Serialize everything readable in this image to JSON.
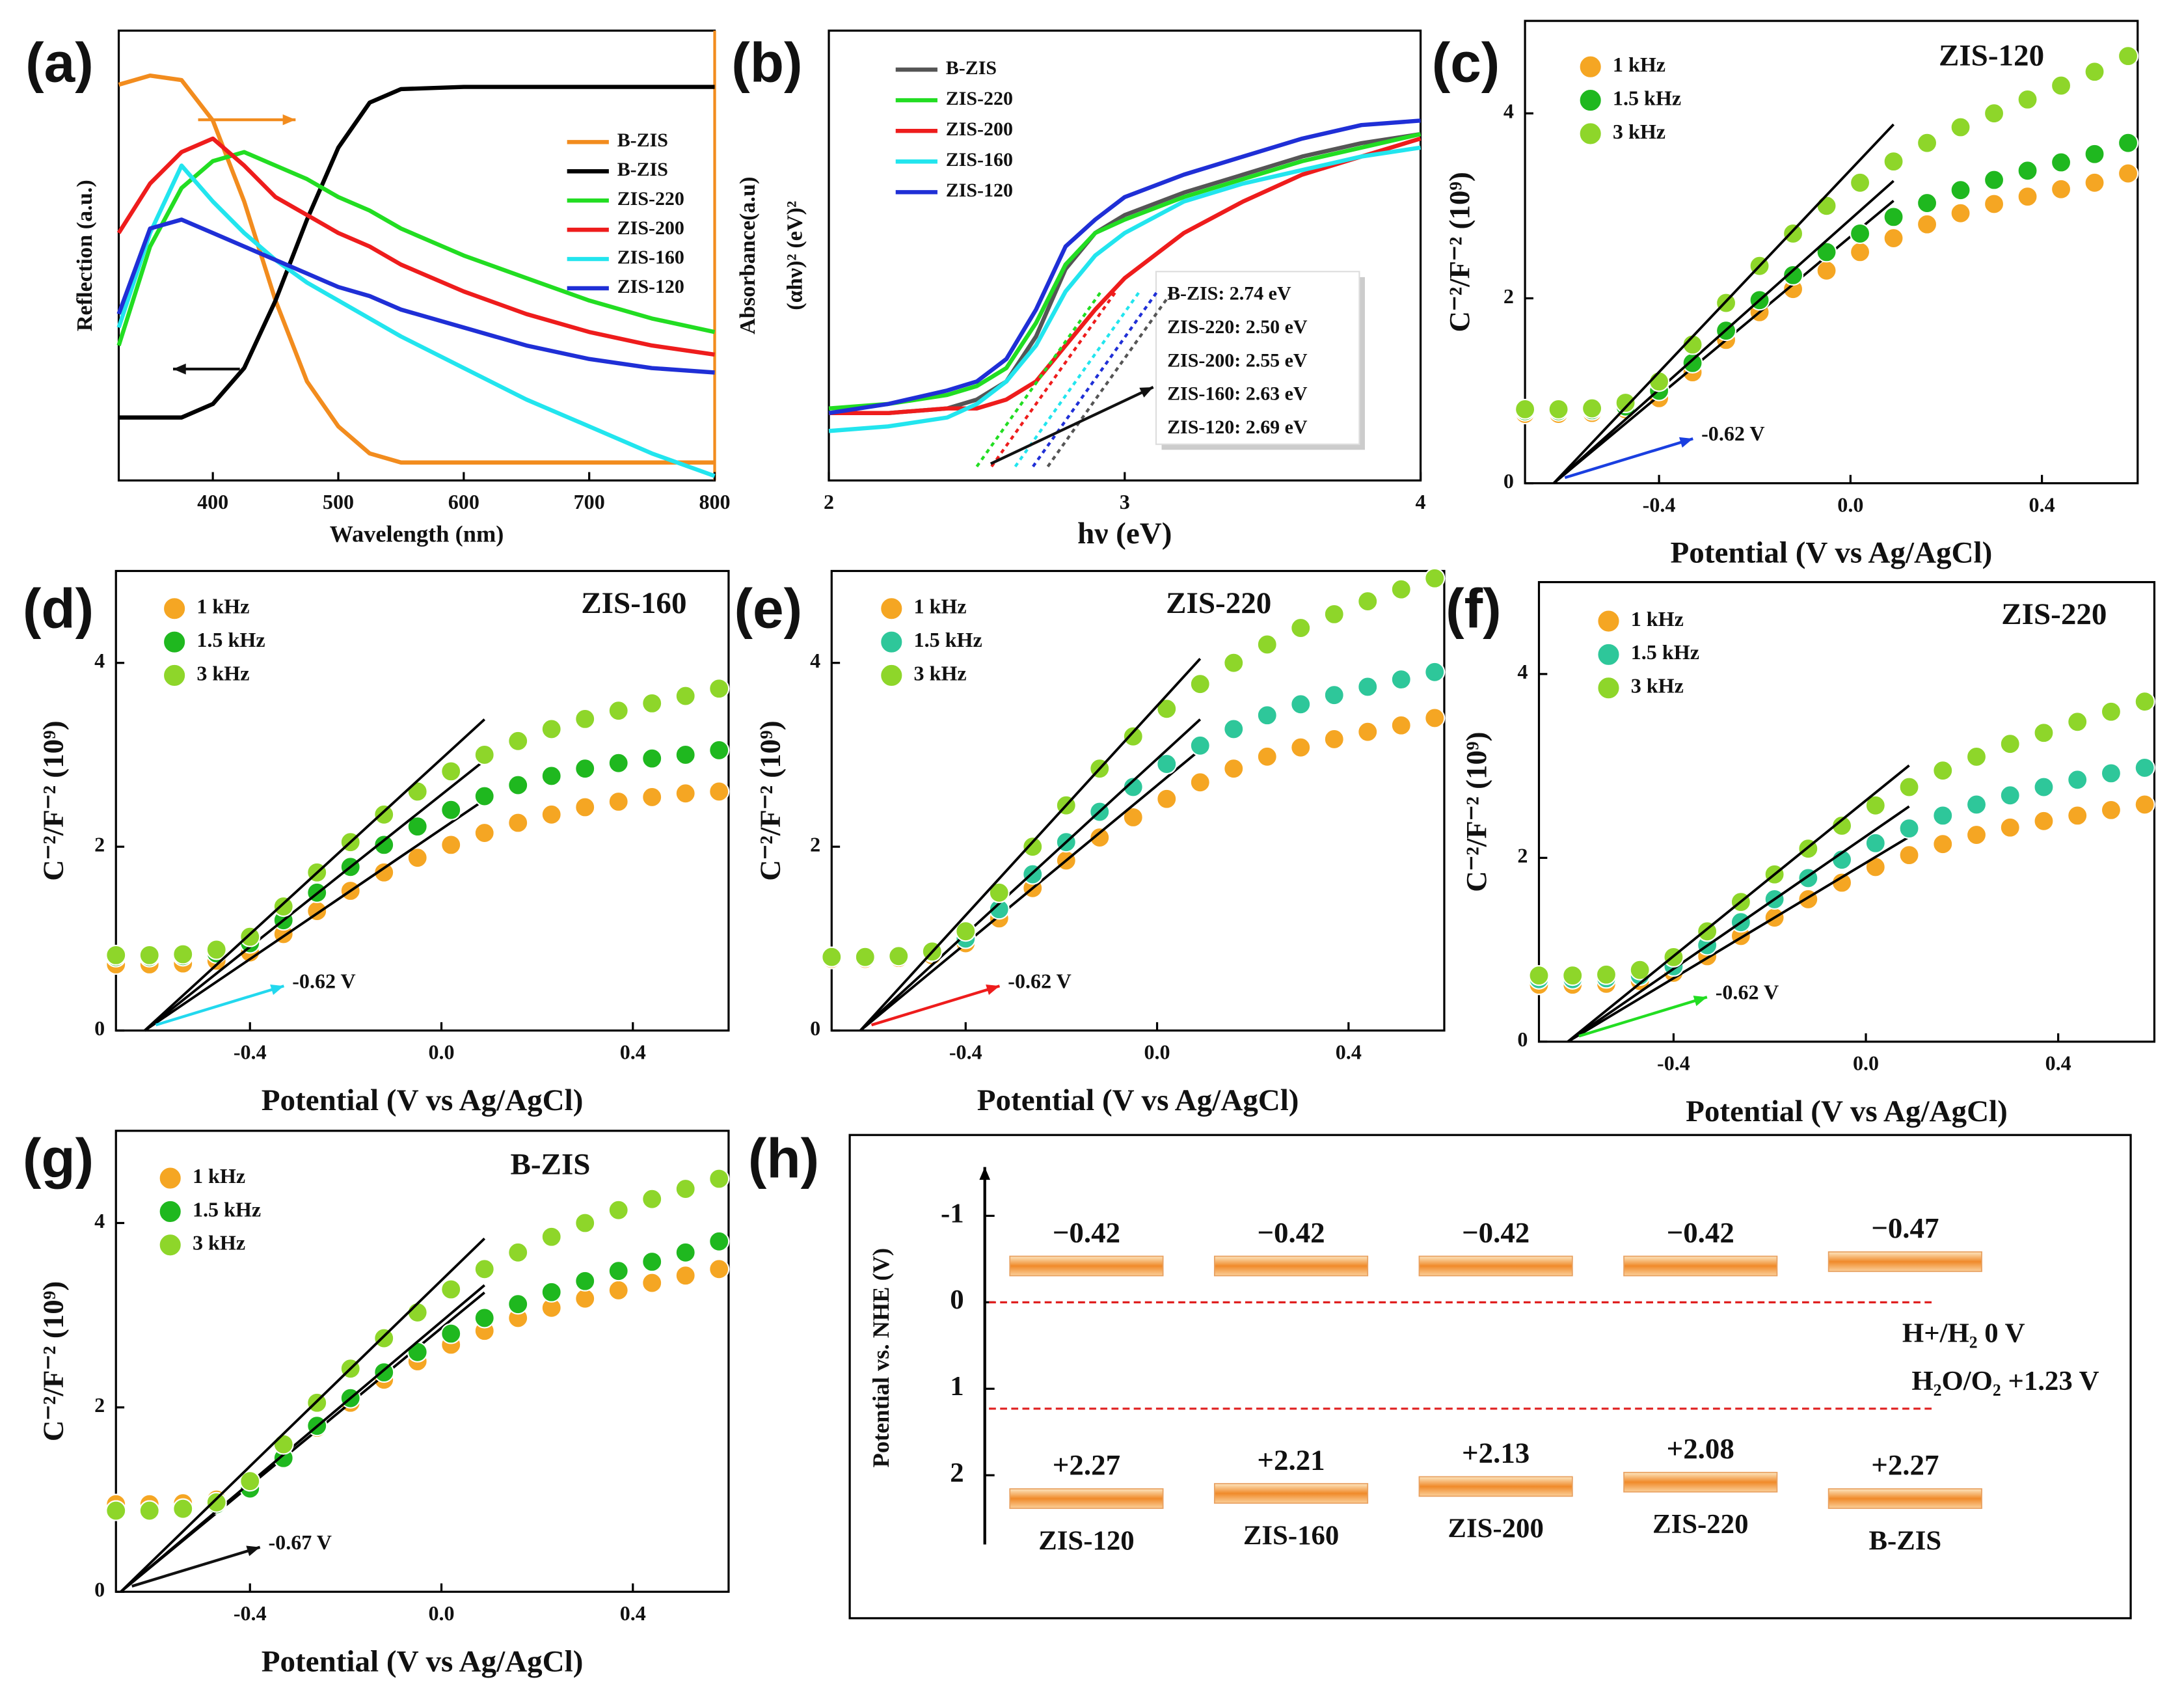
{
  "chart_data": [
    {
      "type": "line",
      "panel_label": "(a)",
      "x_label": "Wavelength (nm)",
      "y_label": "Reflection (a.u.)",
      "y2_label": "Absorbance(a.u)",
      "y2_color": "#f28c1e",
      "x": [
        325,
        350,
        375,
        400,
        425,
        450,
        475,
        500,
        525,
        550,
        600,
        650,
        700,
        750,
        800
      ],
      "xlim": [
        325,
        800
      ],
      "xticks": [
        400,
        500,
        600,
        700,
        800
      ],
      "ylim": [
        0,
        1
      ],
      "y2lim": [
        0,
        1
      ],
      "series": [
        {
          "name": "B-ZIS",
          "color": "#f28c1e",
          "axis": "y2",
          "values": [
            0.88,
            0.9,
            0.89,
            0.8,
            0.62,
            0.4,
            0.22,
            0.12,
            0.06,
            0.04,
            0.04,
            0.04,
            0.04,
            0.04,
            0.04
          ]
        },
        {
          "name": "B-ZIS",
          "color": "#000000",
          "values": [
            0.14,
            0.14,
            0.14,
            0.17,
            0.25,
            0.4,
            0.58,
            0.74,
            0.84,
            0.87,
            0.875,
            0.875,
            0.875,
            0.875,
            0.875
          ]
        },
        {
          "name": "ZIS-220",
          "color": "#22dd22",
          "values": [
            0.3,
            0.52,
            0.65,
            0.71,
            0.73,
            0.7,
            0.67,
            0.63,
            0.6,
            0.56,
            0.5,
            0.45,
            0.4,
            0.36,
            0.33
          ]
        },
        {
          "name": "ZIS-200",
          "color": "#ee1c1c",
          "values": [
            0.55,
            0.66,
            0.73,
            0.76,
            0.7,
            0.63,
            0.59,
            0.55,
            0.52,
            0.48,
            0.42,
            0.37,
            0.33,
            0.3,
            0.28
          ]
        },
        {
          "name": "ZIS-160",
          "color": "#22e5ee",
          "values": [
            0.34,
            0.55,
            0.7,
            0.62,
            0.55,
            0.49,
            0.44,
            0.4,
            0.36,
            0.32,
            0.25,
            0.18,
            0.12,
            0.06,
            0.01
          ]
        },
        {
          "name": "ZIS-120",
          "color": "#1f2fd6",
          "values": [
            0.37,
            0.56,
            0.58,
            0.55,
            0.52,
            0.49,
            0.46,
            0.43,
            0.41,
            0.38,
            0.34,
            0.3,
            0.27,
            0.25,
            0.24
          ]
        }
      ]
    },
    {
      "type": "line",
      "panel_label": "(b)",
      "x_label": "hν (eV)",
      "y_label": "(αhν)² (eV)²",
      "x": [
        2,
        2.2,
        2.4,
        2.5,
        2.6,
        2.7,
        2.8,
        2.9,
        3.0,
        3.2,
        3.4,
        3.6,
        3.8,
        4.0
      ],
      "xlim": [
        2,
        4
      ],
      "xticks": [
        2,
        3,
        4
      ],
      "ylim": [
        0,
        1
      ],
      "series": [
        {
          "name": "B-ZIS",
          "color": "#555555",
          "values": [
            0.15,
            0.15,
            0.16,
            0.18,
            0.22,
            0.32,
            0.47,
            0.55,
            0.59,
            0.64,
            0.68,
            0.72,
            0.75,
            0.77
          ]
        },
        {
          "name": "ZIS-220",
          "color": "#22dd22",
          "values": [
            0.16,
            0.17,
            0.19,
            0.21,
            0.25,
            0.35,
            0.48,
            0.55,
            0.58,
            0.63,
            0.67,
            0.71,
            0.74,
            0.77
          ]
        },
        {
          "name": "ZIS-200",
          "color": "#ee1c1c",
          "values": [
            0.15,
            0.15,
            0.16,
            0.16,
            0.18,
            0.22,
            0.3,
            0.38,
            0.45,
            0.55,
            0.62,
            0.68,
            0.72,
            0.76
          ]
        },
        {
          "name": "ZIS-160",
          "color": "#22e5ee",
          "values": [
            0.11,
            0.12,
            0.14,
            0.17,
            0.22,
            0.3,
            0.42,
            0.5,
            0.55,
            0.62,
            0.66,
            0.69,
            0.72,
            0.74
          ]
        },
        {
          "name": "ZIS-120",
          "color": "#1f2fd6",
          "values": [
            0.15,
            0.17,
            0.2,
            0.22,
            0.27,
            0.38,
            0.52,
            0.58,
            0.63,
            0.68,
            0.72,
            0.76,
            0.79,
            0.8
          ]
        }
      ],
      "band_gaps": [
        {
          "value": 2.74,
          "label": ": 2.74 eV"
        },
        {
          "value": 2.5,
          "label": ": 2.50 eV"
        },
        {
          "value": 2.55,
          "label": ": 2.55 eV"
        },
        {
          "value": 2.63,
          "label": ": 2.63 eV"
        },
        {
          "value": 2.69,
          "label": ": 2.69 eV"
        }
      ]
    },
    {
      "type": "scatter",
      "panel_label": "(c)",
      "title": "ZIS-120",
      "title_color": "#1a1aff",
      "x_label": "Potential (V vs Ag/AgCl)",
      "y_label": "C⁻²/F⁻² (10⁹)",
      "x": [
        -0.68,
        -0.61,
        -0.54,
        -0.47,
        -0.4,
        -0.33,
        -0.26,
        -0.19,
        -0.12,
        -0.05,
        0.02,
        0.09,
        0.16,
        0.23,
        0.3,
        0.37,
        0.44,
        0.51,
        0.58
      ],
      "xlim": [
        -0.68,
        0.6
      ],
      "xticks": [
        -0.4,
        {
          "value": 0,
          "label": "0.0"
        },
        0.4
      ],
      "ylim": [
        0,
        5
      ],
      "yticks": [
        0,
        2,
        4
      ],
      "flat_band": {
        "value": -0.62,
        "label": "-0.62 V"
      },
      "arrow_color": "#1a3fe0",
      "series": [
        {
          "name": "1 kHz",
          "color": "#f5a623",
          "values": [
            0.75,
            0.75,
            0.76,
            0.8,
            0.92,
            1.2,
            1.55,
            1.85,
            2.1,
            2.3,
            2.5,
            2.65,
            2.8,
            2.92,
            3.02,
            3.1,
            3.18,
            3.25,
            3.35
          ]
        },
        {
          "name": "1.5 kHz",
          "color": "#1fb81f",
          "values": [
            0.78,
            0.78,
            0.79,
            0.83,
            1.0,
            1.3,
            1.65,
            1.98,
            2.25,
            2.5,
            2.7,
            2.88,
            3.03,
            3.17,
            3.28,
            3.38,
            3.47,
            3.56,
            3.68
          ]
        },
        {
          "name": "3 kHz",
          "color": "#8ed62a",
          "values": [
            0.8,
            0.8,
            0.81,
            0.87,
            1.1,
            1.5,
            1.95,
            2.35,
            2.7,
            3.0,
            3.25,
            3.48,
            3.68,
            3.85,
            4.0,
            4.15,
            4.3,
            4.45,
            4.62
          ]
        }
      ]
    },
    {
      "type": "scatter",
      "panel_label": "(d)",
      "title": "ZIS-160",
      "title_color": "#22e5ee",
      "x_label": "Potential (V vs Ag/AgCl)",
      "y_label": "C⁻²/F⁻² (10⁹)",
      "x": [
        -0.68,
        -0.61,
        -0.54,
        -0.47,
        -0.4,
        -0.33,
        -0.26,
        -0.19,
        -0.12,
        -0.05,
        0.02,
        0.09,
        0.16,
        0.23,
        0.3,
        0.37,
        0.44,
        0.51,
        0.58
      ],
      "xlim": [
        -0.68,
        0.6
      ],
      "xticks": [
        -0.4,
        {
          "value": 0,
          "label": "0.0"
        },
        0.4
      ],
      "ylim": [
        0,
        5
      ],
      "yticks": [
        0,
        2,
        4
      ],
      "flat_band": {
        "value": -0.62,
        "label": "-0.62 V"
      },
      "arrow_color": "#22d8ee",
      "series": [
        {
          "name": "1 kHz",
          "color": "#f5a623",
          "values": [
            0.72,
            0.72,
            0.73,
            0.76,
            0.85,
            1.05,
            1.3,
            1.52,
            1.72,
            1.88,
            2.02,
            2.15,
            2.26,
            2.35,
            2.43,
            2.49,
            2.54,
            2.58,
            2.6
          ]
        },
        {
          "name": "1.5 kHz",
          "color": "#1fb81f",
          "values": [
            0.8,
            0.8,
            0.81,
            0.84,
            0.95,
            1.2,
            1.5,
            1.78,
            2.02,
            2.22,
            2.4,
            2.55,
            2.67,
            2.77,
            2.85,
            2.91,
            2.96,
            3.0,
            3.05
          ]
        },
        {
          "name": "3 kHz",
          "color": "#8ed62a",
          "values": [
            0.82,
            0.82,
            0.83,
            0.88,
            1.02,
            1.35,
            1.72,
            2.05,
            2.35,
            2.6,
            2.82,
            3.0,
            3.15,
            3.28,
            3.39,
            3.48,
            3.56,
            3.64,
            3.72
          ]
        }
      ]
    },
    {
      "type": "scatter",
      "panel_label": "(e)",
      "title": "ZIS-220",
      "title_color": "#ee1c1c",
      "x_label": "Potential (V vs Ag/AgCl)",
      "y_label": "C⁻²/F⁻² (10⁹)",
      "x": [
        -0.68,
        -0.61,
        -0.54,
        -0.47,
        -0.4,
        -0.33,
        -0.26,
        -0.19,
        -0.12,
        -0.05,
        0.02,
        0.09,
        0.16,
        0.23,
        0.3,
        0.37,
        0.44,
        0.51,
        0.58
      ],
      "xlim": [
        -0.68,
        0.6
      ],
      "xticks": [
        -0.4,
        {
          "value": 0,
          "label": "0.0"
        },
        0.4
      ],
      "ylim": [
        0,
        5
      ],
      "yticks": [
        0,
        2,
        4
      ],
      "flat_band": {
        "value": -0.62,
        "label": "-0.62 V"
      },
      "arrow_color": "#ee1c1c",
      "series": [
        {
          "name": "1 kHz",
          "color": "#f5a623",
          "values": [
            0.78,
            0.78,
            0.79,
            0.82,
            0.95,
            1.22,
            1.55,
            1.85,
            2.1,
            2.32,
            2.52,
            2.7,
            2.85,
            2.98,
            3.08,
            3.17,
            3.25,
            3.32,
            3.4
          ]
        },
        {
          "name": "1.5 kHz",
          "color": "#2ec79a",
          "values": [
            0.8,
            0.8,
            0.81,
            0.85,
            1.0,
            1.32,
            1.7,
            2.05,
            2.38,
            2.65,
            2.9,
            3.1,
            3.28,
            3.43,
            3.55,
            3.65,
            3.74,
            3.82,
            3.9
          ]
        },
        {
          "name": "3 kHz",
          "color": "#8ed62a",
          "values": [
            0.8,
            0.8,
            0.81,
            0.86,
            1.08,
            1.5,
            2.0,
            2.45,
            2.85,
            3.2,
            3.5,
            3.77,
            4.0,
            4.2,
            4.38,
            4.53,
            4.67,
            4.8,
            4.92
          ]
        }
      ]
    },
    {
      "type": "scatter",
      "panel_label": "(f)",
      "title": "ZIS-220",
      "title_color": "#22dd22",
      "x_label": "Potential (V vs Ag/AgCl)",
      "y_label": "C⁻²/F⁻² (10⁹)",
      "x": [
        -0.68,
        -0.61,
        -0.54,
        -0.47,
        -0.4,
        -0.33,
        -0.26,
        -0.19,
        -0.12,
        -0.05,
        0.02,
        0.09,
        0.16,
        0.23,
        0.3,
        0.37,
        0.44,
        0.51,
        0.58
      ],
      "xlim": [
        -0.68,
        0.6
      ],
      "xticks": [
        -0.4,
        {
          "value": 0,
          "label": "0.0"
        },
        0.4
      ],
      "ylim": [
        0,
        5
      ],
      "yticks": [
        0,
        2,
        4
      ],
      "flat_band": {
        "value": -0.62,
        "label": "-0.62 V"
      },
      "arrow_color": "#22dd22",
      "series": [
        {
          "name": "1 kHz",
          "color": "#f5a623",
          "values": [
            0.62,
            0.62,
            0.63,
            0.66,
            0.75,
            0.93,
            1.15,
            1.35,
            1.55,
            1.73,
            1.9,
            2.03,
            2.15,
            2.25,
            2.33,
            2.4,
            2.46,
            2.52,
            2.58
          ]
        },
        {
          "name": "1.5 kHz",
          "color": "#2ec79a",
          "values": [
            0.68,
            0.68,
            0.69,
            0.72,
            0.82,
            1.05,
            1.3,
            1.55,
            1.78,
            1.98,
            2.16,
            2.32,
            2.46,
            2.58,
            2.68,
            2.77,
            2.85,
            2.92,
            2.98
          ]
        },
        {
          "name": "3 kHz",
          "color": "#8ed62a",
          "values": [
            0.72,
            0.72,
            0.73,
            0.78,
            0.92,
            1.2,
            1.52,
            1.82,
            2.1,
            2.35,
            2.57,
            2.77,
            2.95,
            3.1,
            3.24,
            3.36,
            3.48,
            3.59,
            3.7
          ]
        }
      ]
    },
    {
      "type": "scatter",
      "panel_label": "(g)",
      "title": "B-ZIS",
      "title_color": "#222222",
      "x_label": "Potential (V vs Ag/AgCl)",
      "y_label": "C⁻²/F⁻² (10⁹)",
      "x": [
        -0.68,
        -0.61,
        -0.54,
        -0.47,
        -0.4,
        -0.33,
        -0.26,
        -0.19,
        -0.12,
        -0.05,
        0.02,
        0.09,
        0.16,
        0.23,
        0.3,
        0.37,
        0.44,
        0.51,
        0.58
      ],
      "xlim": [
        -0.68,
        0.6
      ],
      "xticks": [
        -0.4,
        {
          "value": 0,
          "label": "0.0"
        },
        0.4
      ],
      "ylim": [
        0,
        5
      ],
      "yticks": [
        0,
        2,
        4
      ],
      "flat_band": {
        "value": -0.67,
        "label": "-0.67 V"
      },
      "arrow_color": "#111111",
      "series": [
        {
          "name": "1 kHz",
          "color": "#f5a623",
          "values": [
            0.95,
            0.95,
            0.96,
            1.0,
            1.15,
            1.45,
            1.78,
            2.05,
            2.3,
            2.5,
            2.68,
            2.83,
            2.97,
            3.08,
            3.18,
            3.27,
            3.35,
            3.43,
            3.5
          ]
        },
        {
          "name": "1.5 kHz",
          "color": "#1fb81f",
          "values": [
            0.88,
            0.88,
            0.9,
            0.95,
            1.12,
            1.45,
            1.8,
            2.1,
            2.38,
            2.6,
            2.8,
            2.97,
            3.12,
            3.25,
            3.37,
            3.48,
            3.58,
            3.68,
            3.8
          ]
        },
        {
          "name": "3 kHz",
          "color": "#8ed62a",
          "values": [
            0.88,
            0.88,
            0.9,
            0.97,
            1.2,
            1.6,
            2.05,
            2.42,
            2.75,
            3.03,
            3.28,
            3.5,
            3.68,
            3.85,
            4.0,
            4.14,
            4.26,
            4.37,
            4.48
          ]
        }
      ]
    },
    {
      "type": "band",
      "panel_label": "(h)",
      "y_label": "Potential vs. NHE (V)",
      "categories": [
        "ZIS-120",
        "ZIS-160",
        "ZIS-200",
        "ZIS-220",
        "B-ZIS"
      ],
      "ylim": [
        -1.5,
        2.8
      ],
      "yticks": [
        -1,
        0,
        1,
        2
      ],
      "cb": [
        -0.42,
        -0.42,
        -0.42,
        -0.42,
        -0.47
      ],
      "cb_labels": [
        "−0.42",
        "−0.42",
        "−0.42",
        "−0.42",
        "−0.47"
      ],
      "vb": [
        2.27,
        2.21,
        2.13,
        2.08,
        2.27
      ],
      "vb_labels": [
        "+2.27",
        "+2.21",
        "+2.13",
        "+2.08",
        "+2.27"
      ],
      "references": [
        {
          "value": 0,
          "label": "H+/H₂ 0 V"
        },
        {
          "value": 1.23,
          "label": "H₂O/O₂ +1.23 V"
        }
      ],
      "reference_color": "#e02020"
    }
  ]
}
